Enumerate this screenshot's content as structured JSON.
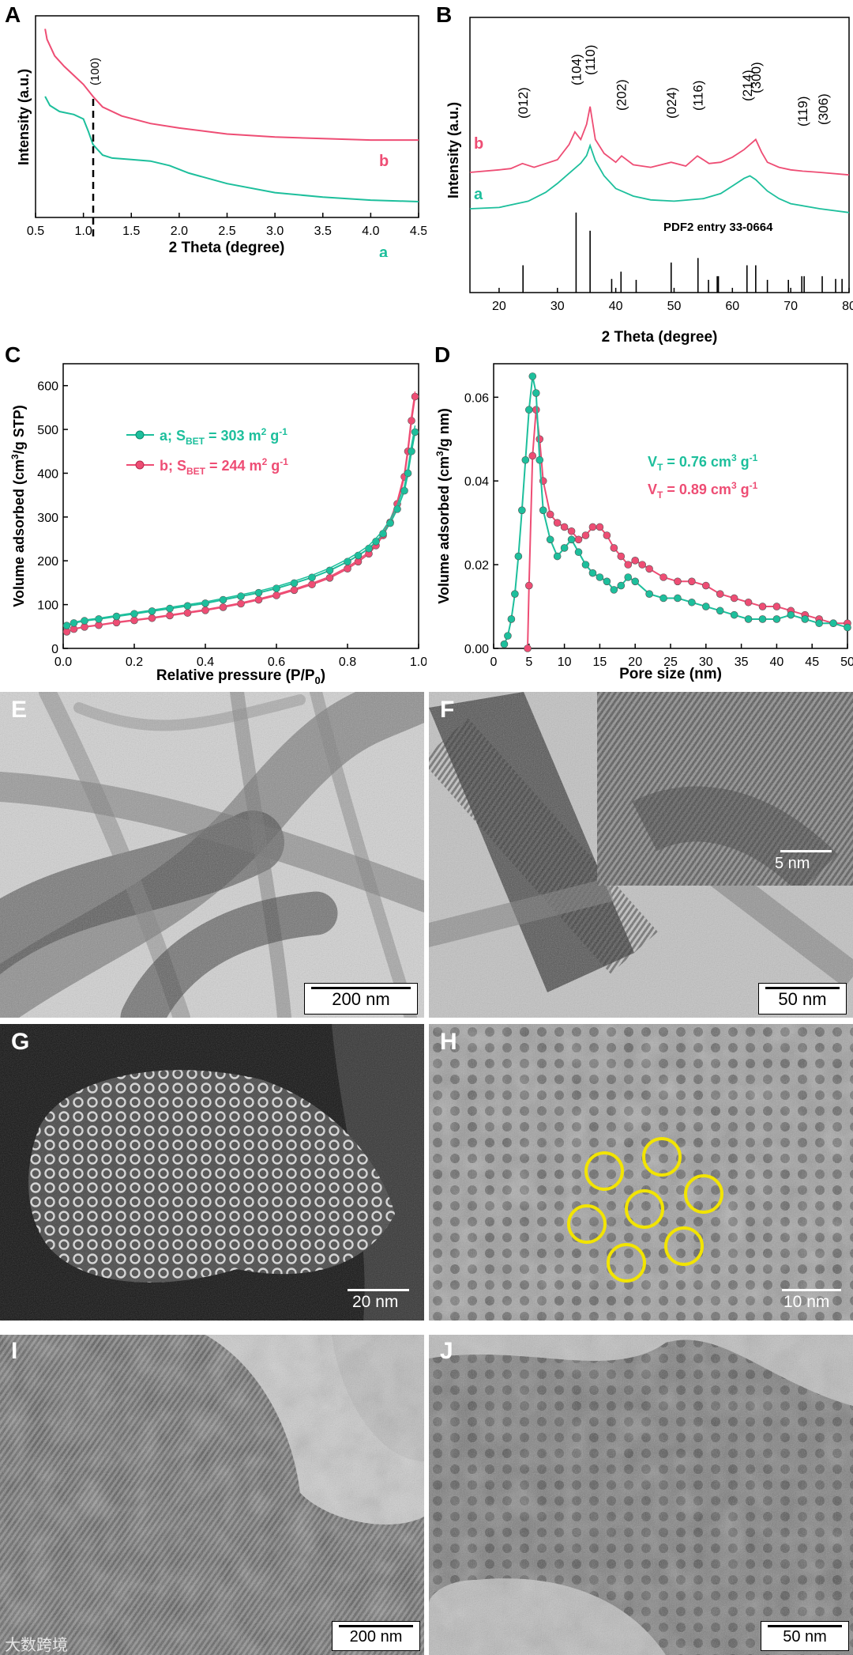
{
  "colors": {
    "series_a": "#1dbf9c",
    "series_b": "#ee4d74",
    "scale_bar_inset": "#ffffff",
    "circles": "#f2e400",
    "axis": "#000000"
  },
  "panels": {
    "A": {
      "letter": "A",
      "xlabel": "2 Theta (degree)",
      "ylabel": "Intensity (a.u.)",
      "peak_label": "(100)",
      "label_a": "a",
      "label_b": "b"
    },
    "B": {
      "letter": "B",
      "xlabel": "2 Theta (degree)",
      "ylabel": "Intensity (a.u.)",
      "label_a": "a",
      "label_b": "b",
      "pdf_label": "PDF2 entry 33-0664"
    },
    "C": {
      "letter": "C",
      "xlabel": "Relative pressure (P/P",
      "xlabel_sub": "0",
      "xlabel_end": ")",
      "ylabel": "Volume adsorbed (cm",
      "ylabel_sup": "3",
      "ylabel_end": "/g STP)",
      "legend_a": "a; S",
      "legend_a_sub": "BET",
      "legend_a_val": " = 303 m",
      "legend_a_sup": "2",
      "legend_a_unit": " g",
      "legend_a_exp": "-1",
      "legend_b": "b; S",
      "legend_b_sub": "BET",
      "legend_b_val": " = 244 m",
      "legend_b_sup": "2",
      "legend_b_unit": " g",
      "legend_b_exp": "-1"
    },
    "D": {
      "letter": "D",
      "xlabel": "Pore size (nm)",
      "ylabel": "Volume adsorbed (cm",
      "ylabel_sup": "3",
      "ylabel_end": "/g nm)",
      "va": "V",
      "va_sub": "T",
      "va_val": " = 0.76 cm",
      "va_sup": "3",
      "va_unit": " g",
      "va_exp": "-1",
      "vb": "V",
      "vb_sub": "T",
      "vb_val": " = 0.89 cm",
      "vb_sup": "3",
      "vb_unit": " g",
      "vb_exp": "-1"
    },
    "E": {
      "letter": "E",
      "scale": "200 nm"
    },
    "F": {
      "letter": "F",
      "scale": "50 nm",
      "inset_scale": "5 nm"
    },
    "G": {
      "letter": "G",
      "scale": "20 nm"
    },
    "H": {
      "letter": "H",
      "scale": "10 nm"
    },
    "I": {
      "letter": "I",
      "scale": "200 nm"
    },
    "J": {
      "letter": "J",
      "scale": "50 nm"
    }
  },
  "watermark": "大数跨境",
  "chart_data": [
    {
      "panel": "A",
      "type": "line",
      "xlabel": "2 Theta (degree)",
      "ylabel": "Intensity (a.u.)",
      "xlim": [
        0.5,
        4.5
      ],
      "xticks": [
        "0.5",
        "1.0",
        "1.5",
        "2.0",
        "2.5",
        "3.0",
        "3.5",
        "4.0",
        "4.5"
      ],
      "annotations": [
        {
          "text": "(100)",
          "x": 1.0
        }
      ],
      "series": [
        {
          "name": "a",
          "x": [
            0.6,
            0.65,
            0.75,
            0.9,
            1.0,
            1.05,
            1.1,
            1.2,
            1.3,
            1.5,
            1.7,
            1.9,
            2.1,
            2.5,
            3.0,
            3.5,
            4.0,
            4.5
          ],
          "values": [
            0.7,
            0.64,
            0.6,
            0.58,
            0.55,
            0.47,
            0.38,
            0.31,
            0.29,
            0.28,
            0.27,
            0.24,
            0.19,
            0.12,
            0.06,
            0.03,
            0.01,
            0.0
          ]
        },
        {
          "name": "b",
          "x": [
            0.6,
            0.62,
            0.7,
            0.8,
            0.9,
            1.0,
            1.1,
            1.2,
            1.4,
            1.7,
            2.0,
            2.5,
            3.0,
            3.5,
            4.0,
            4.5
          ],
          "values": [
            1.15,
            1.08,
            0.97,
            0.9,
            0.84,
            0.78,
            0.7,
            0.63,
            0.57,
            0.52,
            0.49,
            0.45,
            0.43,
            0.42,
            0.41,
            0.41
          ]
        }
      ]
    },
    {
      "panel": "B",
      "type": "line",
      "xlabel": "2 Theta (degree)",
      "ylabel": "Intensity (a.u.)",
      "xlim": [
        15,
        80
      ],
      "xticks": [
        "20",
        "30",
        "40",
        "50",
        "60",
        "70",
        "80"
      ],
      "peak_labels": [
        {
          "text": "(012)",
          "x": 24.1
        },
        {
          "text": "(104)",
          "x": 33.2
        },
        {
          "text": "(110)",
          "x": 35.6
        },
        {
          "text": "(202)",
          "x": 40.9
        },
        {
          "text": "(024)",
          "x": 49.5
        },
        {
          "text": "(116)",
          "x": 54.1
        },
        {
          "text": "(214)",
          "x": 62.5
        },
        {
          "text": "(300)",
          "x": 64.0
        },
        {
          "text": "(119)",
          "x": 72.0
        },
        {
          "text": "(306)",
          "x": 75.5
        }
      ],
      "reference": {
        "name": "PDF2 entry 33-0664",
        "x": [
          24.1,
          33.2,
          35.6,
          39.3,
          40.9,
          43.5,
          49.5,
          54.1,
          55.9,
          57.4,
          57.6,
          62.5,
          64.0,
          66.0,
          69.6,
          71.9,
          72.3,
          75.4,
          77.7,
          78.8
        ],
        "values": [
          0.3,
          0.88,
          0.68,
          0.15,
          0.23,
          0.14,
          0.33,
          0.38,
          0.14,
          0.18,
          0.18,
          0.3,
          0.3,
          0.14,
          0.14,
          0.18,
          0.18,
          0.18,
          0.15,
          0.15
        ]
      },
      "series": [
        {
          "name": "b",
          "x": [
            15,
            20,
            22,
            24,
            26,
            28,
            30,
            32,
            33,
            34,
            35,
            35.6,
            36.5,
            38,
            40,
            41,
            43,
            46,
            49.5,
            52,
            54,
            56,
            58,
            60,
            62,
            63,
            64,
            65,
            66,
            68,
            70,
            72,
            75,
            80
          ],
          "values": [
            0.4,
            0.42,
            0.43,
            0.47,
            0.44,
            0.47,
            0.5,
            0.62,
            0.72,
            0.66,
            0.78,
            0.92,
            0.66,
            0.55,
            0.48,
            0.53,
            0.46,
            0.44,
            0.48,
            0.45,
            0.53,
            0.47,
            0.48,
            0.52,
            0.58,
            0.62,
            0.66,
            0.56,
            0.48,
            0.44,
            0.42,
            0.41,
            0.4,
            0.38
          ]
        },
        {
          "name": "a",
          "x": [
            15,
            20,
            25,
            28,
            30,
            32,
            34,
            35,
            35.6,
            36.5,
            38,
            40,
            43,
            46,
            50,
            55,
            58,
            60,
            62,
            63,
            64,
            66,
            68,
            70,
            75,
            80
          ],
          "values": [
            0.1,
            0.11,
            0.16,
            0.23,
            0.3,
            0.38,
            0.46,
            0.52,
            0.6,
            0.48,
            0.36,
            0.26,
            0.2,
            0.17,
            0.16,
            0.18,
            0.22,
            0.28,
            0.34,
            0.36,
            0.33,
            0.24,
            0.18,
            0.14,
            0.1,
            0.07
          ]
        }
      ]
    },
    {
      "panel": "C",
      "type": "line",
      "xlabel": "Relative pressure (P/P0)",
      "ylabel": "Volume adsorbed (cm3/g STP)",
      "xlim": [
        0.0,
        1.0
      ],
      "ylim": [
        0,
        650
      ],
      "xticks": [
        "0.0",
        "0.2",
        "0.4",
        "0.6",
        "0.8",
        "1.0"
      ],
      "yticks": [
        "0",
        "100",
        "200",
        "300",
        "400",
        "500",
        "600"
      ],
      "series": [
        {
          "name": "a; SBET = 303 m2 g-1",
          "x": [
            0.01,
            0.03,
            0.06,
            0.1,
            0.15,
            0.2,
            0.25,
            0.3,
            0.35,
            0.4,
            0.45,
            0.5,
            0.55,
            0.6,
            0.65,
            0.7,
            0.75,
            0.8,
            0.83,
            0.86,
            0.88,
            0.9,
            0.92,
            0.94,
            0.96,
            0.97,
            0.98,
            0.99
          ],
          "values": [
            52,
            58,
            63,
            67,
            73,
            79,
            85,
            91,
            97,
            103,
            111,
            119,
            127,
            137,
            149,
            162,
            178,
            198,
            212,
            228,
            244,
            262,
            286,
            318,
            360,
            400,
            450,
            494
          ]
        },
        {
          "name": "b; SBET = 244 m2 g-1",
          "x": [
            0.01,
            0.03,
            0.06,
            0.1,
            0.15,
            0.2,
            0.25,
            0.3,
            0.35,
            0.4,
            0.45,
            0.5,
            0.55,
            0.6,
            0.65,
            0.7,
            0.75,
            0.8,
            0.83,
            0.86,
            0.88,
            0.9,
            0.92,
            0.94,
            0.96,
            0.97,
            0.98,
            0.99
          ],
          "values": [
            38,
            44,
            49,
            53,
            59,
            64,
            69,
            75,
            81,
            87,
            94,
            102,
            111,
            121,
            133,
            146,
            161,
            182,
            198,
            216,
            235,
            258,
            288,
            330,
            392,
            450,
            520,
            575
          ]
        }
      ]
    },
    {
      "panel": "D",
      "type": "line",
      "xlabel": "Pore size (nm)",
      "ylabel": "Volume adsorbed (cm3/g nm)",
      "xlim": [
        0,
        50
      ],
      "ylim": [
        0,
        0.068
      ],
      "xticks": [
        "0",
        "5",
        "10",
        "15",
        "20",
        "25",
        "30",
        "35",
        "40",
        "45",
        "50"
      ],
      "yticks": [
        "0.00",
        "0.02",
        "0.04",
        "0.06"
      ],
      "series": [
        {
          "name": "VT = 0.76 cm3 g-1",
          "x": [
            1.5,
            2,
            2.5,
            3,
            3.5,
            4,
            4.5,
            5,
            5.5,
            6,
            6.5,
            7,
            8,
            9,
            10,
            11,
            12,
            13,
            14,
            15,
            16,
            17,
            18,
            19,
            20,
            22,
            24,
            26,
            28,
            30,
            32,
            34,
            36,
            38,
            40,
            42,
            44,
            46,
            48,
            50
          ],
          "values": [
            0.001,
            0.003,
            0.007,
            0.013,
            0.022,
            0.033,
            0.045,
            0.057,
            0.065,
            0.061,
            0.045,
            0.033,
            0.026,
            0.022,
            0.024,
            0.026,
            0.023,
            0.02,
            0.018,
            0.017,
            0.016,
            0.014,
            0.015,
            0.017,
            0.016,
            0.013,
            0.012,
            0.012,
            0.011,
            0.01,
            0.009,
            0.008,
            0.007,
            0.007,
            0.007,
            0.008,
            0.007,
            0.006,
            0.006,
            0.005
          ]
        },
        {
          "name": "VT = 0.89 cm3 g-1",
          "x": [
            4.8,
            5,
            5.5,
            6,
            6.5,
            7,
            8,
            9,
            10,
            11,
            12,
            13,
            14,
            15,
            16,
            17,
            18,
            19,
            20,
            21,
            22,
            24,
            26,
            28,
            30,
            32,
            34,
            36,
            38,
            40,
            42,
            44,
            46,
            48,
            50
          ],
          "values": [
            0.0,
            0.015,
            0.046,
            0.057,
            0.05,
            0.04,
            0.032,
            0.03,
            0.029,
            0.028,
            0.026,
            0.027,
            0.029,
            0.029,
            0.027,
            0.024,
            0.022,
            0.02,
            0.021,
            0.02,
            0.019,
            0.017,
            0.016,
            0.016,
            0.015,
            0.013,
            0.012,
            0.011,
            0.01,
            0.01,
            0.009,
            0.008,
            0.007,
            0.006,
            0.006
          ]
        }
      ]
    }
  ]
}
